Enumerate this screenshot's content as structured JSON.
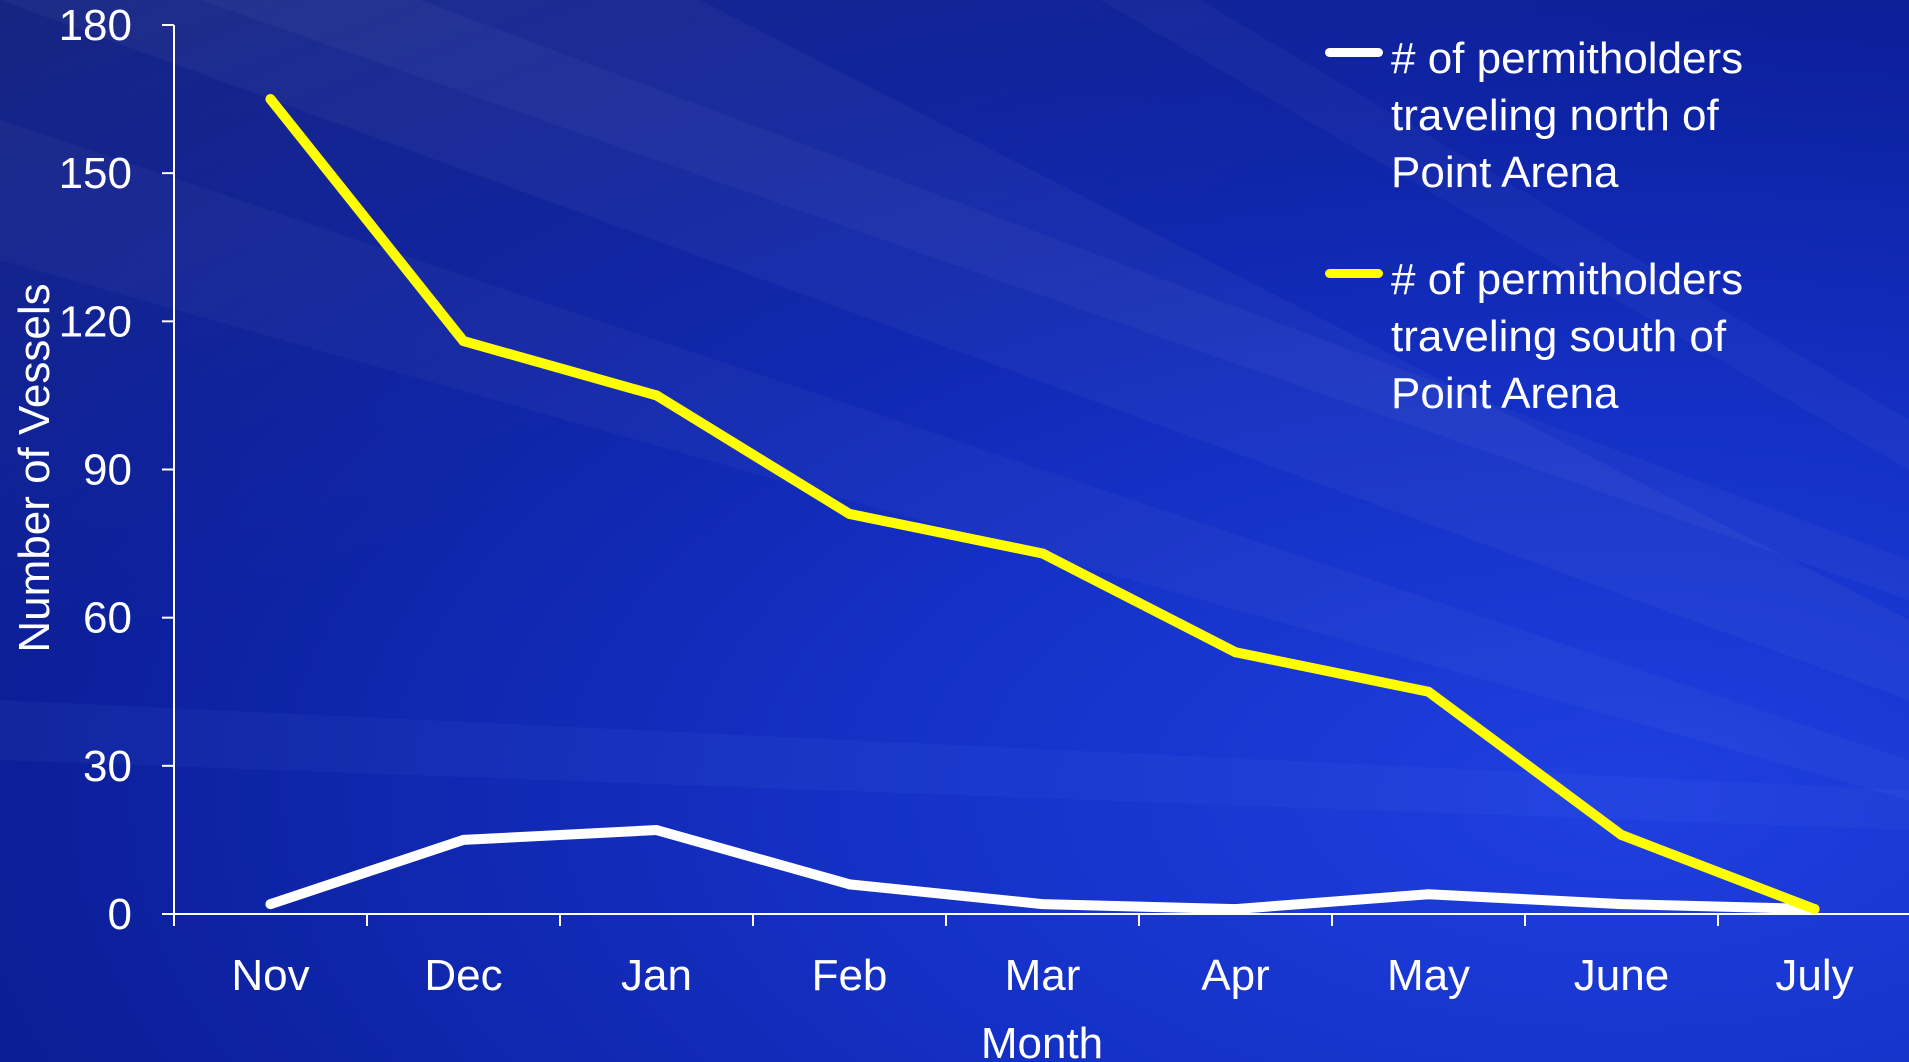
{
  "chart_data": {
    "type": "line",
    "title": "",
    "xlabel": "Month",
    "ylabel": "Number of Vessels",
    "categories": [
      "Nov",
      "Dec",
      "Jan",
      "Feb",
      "Mar",
      "Apr",
      "May",
      "June",
      "July"
    ],
    "ylim": [
      0,
      180
    ],
    "yticks": [
      0,
      30,
      60,
      90,
      120,
      150,
      180
    ],
    "grid": false,
    "legend_position": "top-right",
    "series": [
      {
        "name": "# of permitholders traveling north of Point Arena",
        "color": "#ffffff",
        "values": [
          2,
          15,
          17,
          6,
          2,
          1,
          4,
          2,
          1
        ]
      },
      {
        "name": "# of permitholders traveling south of Point Arena",
        "color": "#ffff00",
        "values": [
          165,
          116,
          105,
          81,
          73,
          53,
          45,
          16,
          1
        ]
      }
    ]
  }
}
